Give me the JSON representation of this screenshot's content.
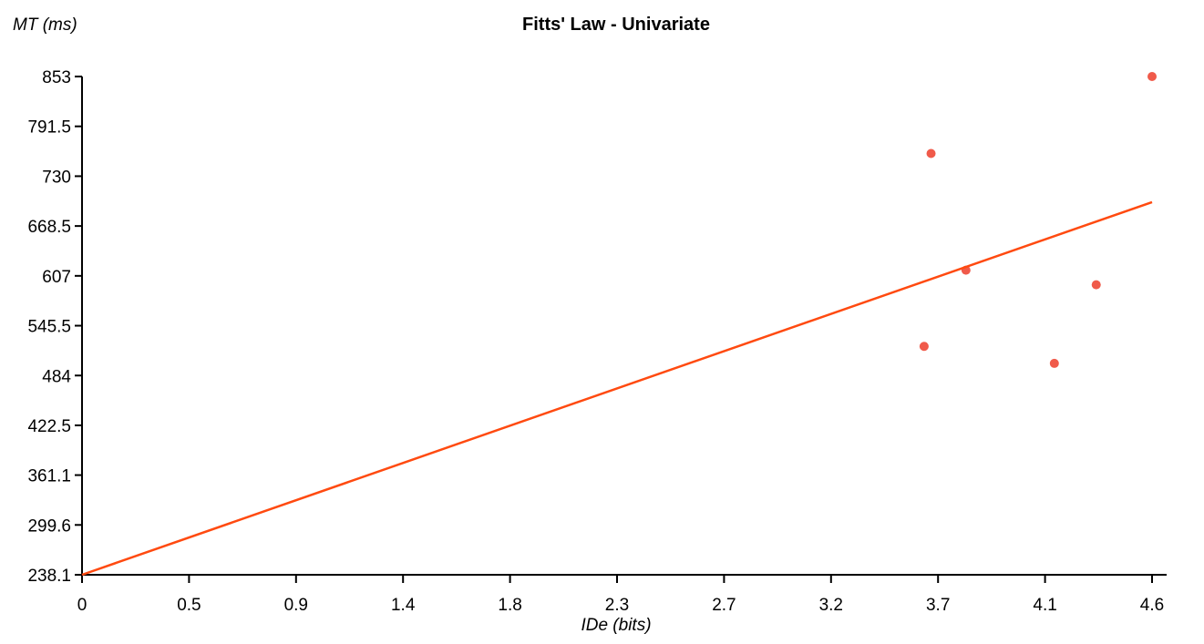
{
  "chart_data": {
    "type": "scatter",
    "title": "Fitts' Law - Univariate",
    "xlabel": "IDe (bits)",
    "ylabel": "MT (ms)",
    "xlim": [
      0,
      4.6
    ],
    "ylim": [
      238.1,
      853
    ],
    "x_ticks": [
      "0",
      "0.5",
      "0.9",
      "1.4",
      "1.8",
      "2.3",
      "2.7",
      "3.2",
      "3.7",
      "4.1",
      "4.6"
    ],
    "x_tick_values": [
      0,
      0.46,
      0.92,
      1.38,
      1.84,
      2.3,
      2.76,
      3.22,
      3.68,
      4.14,
      4.6
    ],
    "y_ticks": [
      "238.1",
      "299.6",
      "361.1",
      "422.5",
      "484",
      "545.5",
      "607",
      "668.5",
      "730",
      "791.5",
      "853"
    ],
    "y_tick_values": [
      238.1,
      299.6,
      361.1,
      422.5,
      484,
      545.5,
      607,
      668.5,
      730,
      791.5,
      853
    ],
    "grid": false,
    "series": [
      {
        "type": "scatter",
        "color": "#f05a4a",
        "points": [
          {
            "x": 3.62,
            "y": 520
          },
          {
            "x": 3.65,
            "y": 758
          },
          {
            "x": 3.8,
            "y": 614
          },
          {
            "x": 4.18,
            "y": 499
          },
          {
            "x": 4.36,
            "y": 596
          },
          {
            "x": 4.6,
            "y": 853
          }
        ]
      },
      {
        "type": "line",
        "color": "#ff4a10",
        "points": [
          {
            "x": 0,
            "y": 238.1
          },
          {
            "x": 4.6,
            "y": 698
          }
        ]
      }
    ]
  }
}
